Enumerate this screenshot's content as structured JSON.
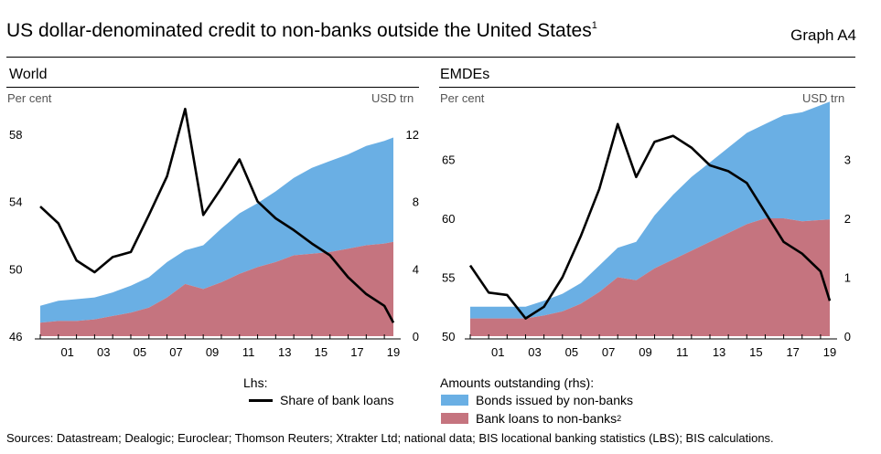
{
  "header": {
    "title": "US dollar-denominated credit to non-banks outside the United States",
    "title_note": "1",
    "graph_number": "Graph A4"
  },
  "colors": {
    "bonds": "#6aafe4",
    "loans": "#c5747f",
    "share": "#000000"
  },
  "legend": {
    "lhs_heading": "Lhs:",
    "share_label": "Share of bank loans",
    "rhs_heading": "Amounts outstanding (rhs):",
    "bonds_label": "Bonds issued by non-banks",
    "loans_label": "Bank loans to non-banks",
    "loans_note": "2"
  },
  "footer": {
    "sources": "Sources: Datastream; Dealogic; Euroclear; Thomson Reuters; Xtrakter Ltd; national data; BIS locational banking statistics (LBS); BIS calculations."
  },
  "chart_data": [
    {
      "type": "area",
      "title": "World",
      "ylabel_left": "Per cent",
      "ylabel_right": "USD trn",
      "ylim_left": [
        46,
        60
      ],
      "ylim_right": [
        0,
        14
      ],
      "yticks_left": [
        46,
        50,
        54,
        58
      ],
      "yticks_right": [
        0,
        4,
        8,
        12
      ],
      "x_range": [
        2000.0,
        2019.6
      ],
      "x_ticks": [
        "01",
        "03",
        "05",
        "07",
        "09",
        "11",
        "13",
        "15",
        "17",
        "19"
      ],
      "x": [
        2000.0,
        2001.0,
        2002.0,
        2003.0,
        2004.0,
        2005.0,
        2006.0,
        2007.0,
        2008.0,
        2009.0,
        2010.0,
        2011.0,
        2012.0,
        2013.0,
        2014.0,
        2015.0,
        2016.0,
        2017.0,
        2018.0,
        2019.0,
        2019.5
      ],
      "series": [
        {
          "name": "Bank loans to non-banks",
          "stack": "rhs",
          "values": [
            0.8,
            0.9,
            0.9,
            1.0,
            1.2,
            1.4,
            1.7,
            2.3,
            3.1,
            2.8,
            3.2,
            3.7,
            4.1,
            4.4,
            4.8,
            4.9,
            5.0,
            5.2,
            5.4,
            5.5,
            5.6
          ]
        },
        {
          "name": "Bonds issued by non-banks",
          "stack": "rhs",
          "values": [
            1.0,
            1.2,
            1.3,
            1.3,
            1.4,
            1.6,
            1.8,
            2.1,
            2.0,
            2.6,
            3.2,
            3.6,
            3.8,
            4.2,
            4.6,
            5.1,
            5.4,
            5.6,
            5.9,
            6.1,
            6.2
          ]
        },
        {
          "name": "Share of bank loans",
          "axis": "lhs",
          "type": "line",
          "values": [
            53.7,
            52.7,
            50.5,
            49.8,
            50.7,
            51.0,
            53.2,
            55.5,
            59.5,
            53.2,
            54.8,
            56.5,
            54.0,
            53.0,
            52.3,
            51.5,
            50.8,
            49.5,
            48.5,
            47.8,
            46.8
          ]
        }
      ]
    },
    {
      "type": "area",
      "title": "EMDEs",
      "ylabel_left": "Per cent",
      "ylabel_right": "USD trn",
      "ylim_left": [
        50,
        70
      ],
      "ylim_right": [
        0,
        4
      ],
      "yticks_left": [
        50,
        55,
        60,
        65
      ],
      "yticks_right": [
        0,
        1,
        2,
        3
      ],
      "x_range": [
        2000.0,
        2019.6
      ],
      "x_ticks": [
        "01",
        "03",
        "05",
        "07",
        "09",
        "11",
        "13",
        "15",
        "17",
        "19"
      ],
      "x": [
        2000.0,
        2001.0,
        2002.0,
        2003.0,
        2004.0,
        2005.0,
        2006.0,
        2007.0,
        2008.0,
        2009.0,
        2010.0,
        2011.0,
        2012.0,
        2013.0,
        2014.0,
        2015.0,
        2016.0,
        2017.0,
        2018.0,
        2019.0,
        2019.5
      ],
      "series": [
        {
          "name": "Bank loans to non-banks",
          "stack": "rhs",
          "values": [
            0.3,
            0.3,
            0.3,
            0.3,
            0.35,
            0.42,
            0.55,
            0.75,
            1.0,
            0.95,
            1.15,
            1.3,
            1.45,
            1.6,
            1.75,
            1.9,
            2.0,
            2.0,
            1.95,
            1.97,
            1.98
          ]
        },
        {
          "name": "Bonds issued by non-banks",
          "stack": "rhs",
          "values": [
            0.2,
            0.2,
            0.2,
            0.2,
            0.25,
            0.3,
            0.35,
            0.45,
            0.5,
            0.65,
            0.9,
            1.1,
            1.25,
            1.35,
            1.45,
            1.55,
            1.6,
            1.75,
            1.85,
            1.95,
            2.0
          ]
        },
        {
          "name": "Share of bank loans",
          "axis": "lhs",
          "type": "line",
          "values": [
            56.0,
            53.7,
            53.5,
            51.5,
            52.5,
            55.0,
            58.5,
            62.5,
            68.0,
            63.5,
            66.5,
            67.0,
            66.0,
            64.5,
            64.0,
            63.0,
            60.5,
            58.0,
            57.0,
            55.5,
            53.0
          ]
        }
      ]
    }
  ]
}
